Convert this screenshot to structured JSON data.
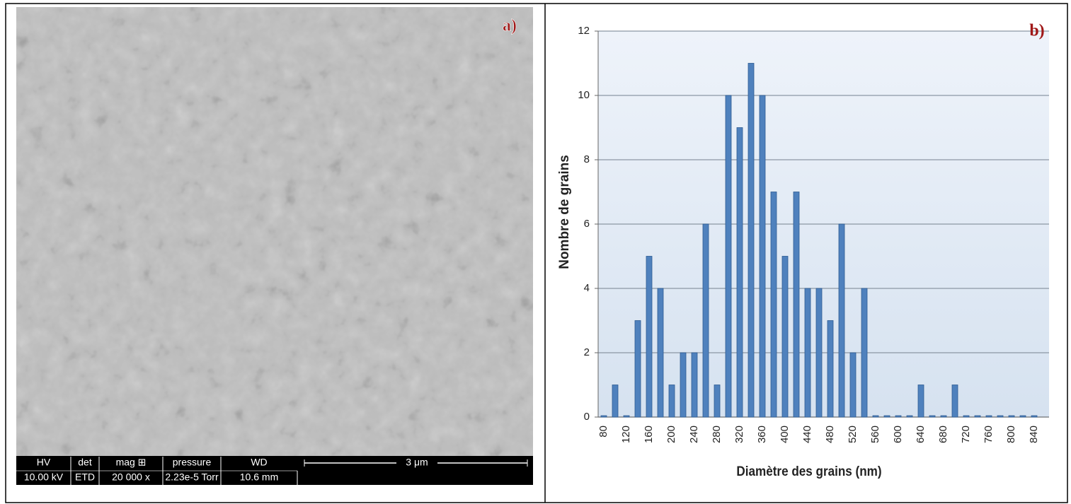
{
  "micrograph": {
    "label": "a)",
    "info_bar": {
      "headers": [
        "HV",
        "det",
        "mag ⊞",
        "pressure",
        "WD"
      ],
      "values": [
        "10.00 kV",
        "ETD",
        "20 000 x",
        "2.23e-5 Torr",
        "10.6 mm"
      ],
      "scale": "3 μm"
    }
  },
  "chart_data": {
    "type": "bar",
    "label": "b)",
    "y_label": "Nombre de grains",
    "x_label": "Diamètre des grains (nm)",
    "categories": [
      "80",
      null,
      "120",
      null,
      "160",
      null,
      "200",
      null,
      "240",
      null,
      "280",
      null,
      "320",
      null,
      "360",
      null,
      "400",
      null,
      "440",
      null,
      "480",
      null,
      "520",
      null,
      "560",
      null,
      "600",
      null,
      "640",
      null,
      "680",
      null,
      "720",
      null,
      "760",
      null,
      "800",
      null,
      "840"
    ],
    "values": [
      0,
      1,
      0,
      3,
      5,
      4,
      1,
      2,
      2,
      6,
      1,
      10,
      9,
      11,
      10,
      7,
      5,
      7,
      4,
      4,
      3,
      6,
      2,
      4,
      0,
      0,
      0,
      0,
      1,
      0,
      0,
      1,
      0,
      0,
      0,
      0,
      0,
      0,
      0
    ],
    "color": "#4f81bd",
    "ylim": [
      0,
      12
    ],
    "yticks": [
      0,
      2,
      4,
      6,
      8,
      10,
      12
    ],
    "grid": true
  }
}
